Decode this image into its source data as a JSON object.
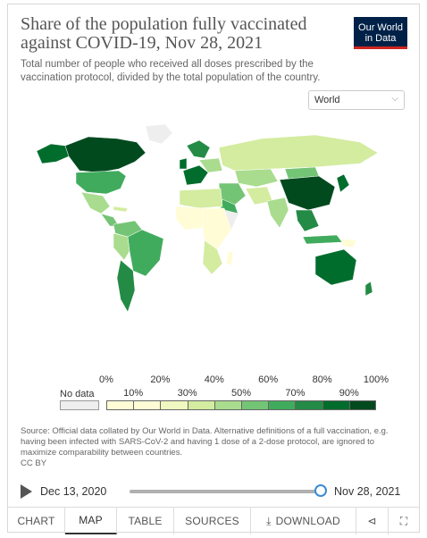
{
  "header": {
    "title": "Share of the population fully vaccinated against COVID-19, Nov 28, 2021",
    "subtitle": "Total number of people who received all doses prescribed by the vaccination protocol, divided by the total population of the country.",
    "logo_text": "Our World in Data"
  },
  "region_select": {
    "value": "World",
    "icon": "chevron-down-icon"
  },
  "legend": {
    "no_data_label": "No data",
    "no_data_color": "#eeeeee",
    "ticks_top": [
      "0%",
      "20%",
      "40%",
      "60%",
      "80%",
      "100%"
    ],
    "ticks_bottom": [
      "10%",
      "30%",
      "50%",
      "70%",
      "90%"
    ],
    "colors": [
      "#fffcd6",
      "#f0f7c0",
      "#d3ec9f",
      "#a9dc8e",
      "#74c476",
      "#41ab5d",
      "#238b45",
      "#006d2c",
      "#004a1e"
    ]
  },
  "source": {
    "text": "Source: Official data collated by Our World in Data. Alternative definitions of a full vaccination, e.g. having been infected with SARS-CoV-2 and having 1 dose of a 2-dose protocol, are ignored to maximize comparability between countries.",
    "license": "CC BY"
  },
  "timeline": {
    "start_date": "Dec 13, 2020",
    "end_date": "Nov 28, 2021",
    "position": 1.0,
    "play_icon": "play-icon"
  },
  "tabs": [
    {
      "label": "CHART",
      "active": false
    },
    {
      "label": "MAP",
      "active": true
    },
    {
      "label": "TABLE",
      "active": false
    },
    {
      "label": "SOURCES",
      "active": false
    },
    {
      "label": "DOWNLOAD",
      "active": false,
      "icon": "download-icon"
    },
    {
      "label": "",
      "active": false,
      "icon": "share-icon"
    },
    {
      "label": "",
      "active": false,
      "icon": "fullscreen-icon"
    }
  ]
}
